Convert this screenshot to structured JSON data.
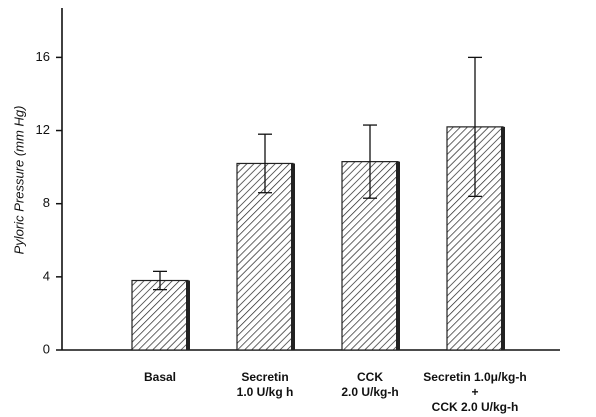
{
  "chart_data": {
    "type": "bar",
    "y_label": "Pyloric Pressure (mm Hg)",
    "categories": [
      [
        "Basal"
      ],
      [
        "Secretin",
        "1.0 U/kg h"
      ],
      [
        "CCK",
        "2.0 U/kg-h"
      ],
      [
        "Secretin 1.0μ/kg-h",
        "+",
        "CCK 2.0 U/kg-h"
      ]
    ],
    "values": [
      3.8,
      10.2,
      10.3,
      12.2
    ],
    "errors": [
      0.5,
      1.6,
      2.0,
      3.8
    ],
    "color": "#222222",
    "ylim": [
      0,
      18.7
    ],
    "yticks": [
      0,
      4,
      8,
      12,
      16
    ],
    "grid": false
  }
}
